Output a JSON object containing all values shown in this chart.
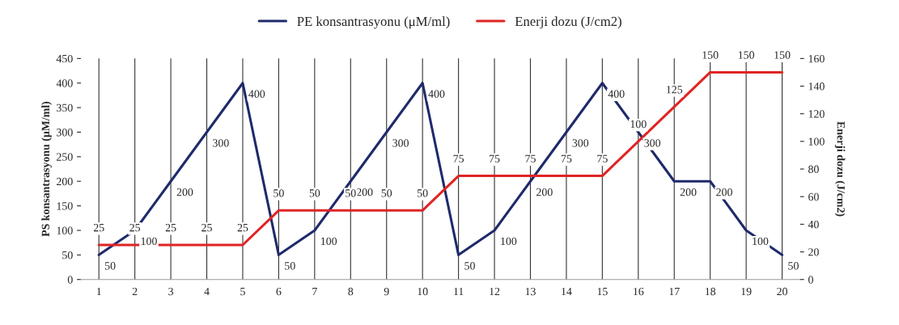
{
  "chart_data": {
    "type": "line",
    "categories": [
      "1",
      "2",
      "3",
      "4",
      "5",
      "6",
      "7",
      "8",
      "9",
      "10",
      "11",
      "12",
      "13",
      "14",
      "15",
      "16",
      "17",
      "18",
      "19",
      "20"
    ],
    "series": [
      {
        "name": "PE konsantrasyonu (μM/ml)",
        "color": "#1f2a6b",
        "values": [
          50,
          100,
          200,
          300,
          400,
          50,
          100,
          200,
          300,
          400,
          50,
          100,
          200,
          300,
          400,
          300,
          200,
          200,
          100,
          50
        ]
      },
      {
        "name": "Enerji dozu (J/cm2)",
        "color": "#e02424",
        "axis": "y2",
        "values": [
          25,
          25,
          25,
          25,
          25,
          50,
          50,
          50,
          50,
          50,
          75,
          75,
          75,
          75,
          75,
          100,
          125,
          150,
          150,
          150
        ]
      }
    ],
    "ylabel": "PS konsantrasyonu (μM/ml)",
    "y2label": "Enerji dozu (J/cm2)",
    "ylim": [
      0,
      450
    ],
    "yticks": [
      0,
      50,
      100,
      150,
      200,
      250,
      300,
      350,
      400,
      450
    ],
    "y2lim": [
      0,
      160
    ],
    "y2ticks": [
      0,
      20,
      40,
      60,
      80,
      100,
      120,
      140,
      160
    ],
    "grid": "x",
    "legend": "top",
    "marker": "none",
    "line_style": "solid",
    "data_labels": true
  }
}
